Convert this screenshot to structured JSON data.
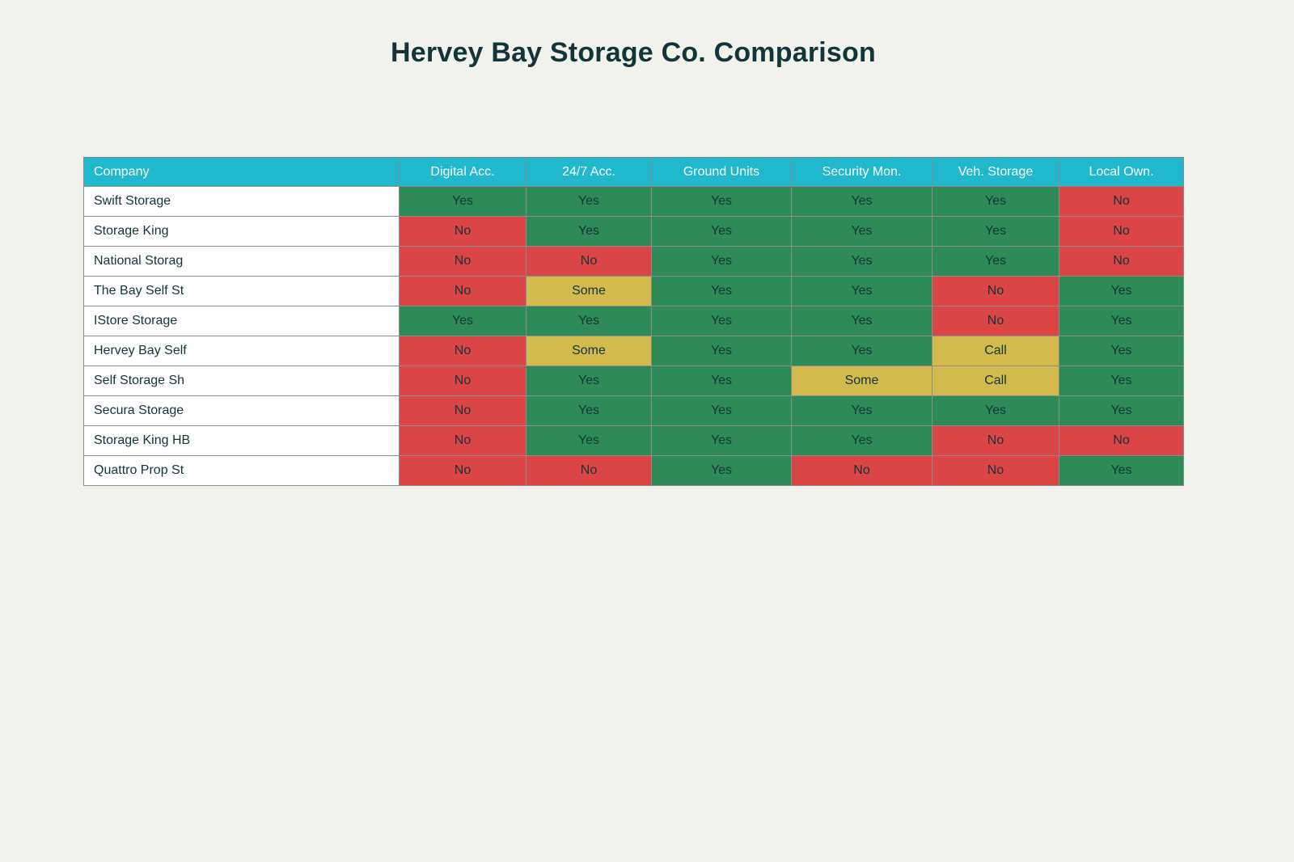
{
  "title": "Hervey Bay Storage Co. Comparison",
  "chart_data": {
    "type": "table",
    "title": "Hervey Bay Storage Co. Comparison",
    "columns": [
      "Company",
      "Digital Acc.",
      "24/7 Acc.",
      "Ground Units",
      "Security Mon.",
      "Veh. Storage",
      "Local Own."
    ],
    "rows": [
      {
        "company": "Swift Storage",
        "values": [
          "Yes",
          "Yes",
          "Yes",
          "Yes",
          "Yes",
          "No"
        ]
      },
      {
        "company": "Storage King",
        "values": [
          "No",
          "Yes",
          "Yes",
          "Yes",
          "Yes",
          "No"
        ]
      },
      {
        "company": "National Storag",
        "values": [
          "No",
          "No",
          "Yes",
          "Yes",
          "Yes",
          "No"
        ]
      },
      {
        "company": "The Bay Self St",
        "values": [
          "No",
          "Some",
          "Yes",
          "Yes",
          "No",
          "Yes"
        ]
      },
      {
        "company": "IStore Storage",
        "values": [
          "Yes",
          "Yes",
          "Yes",
          "Yes",
          "No",
          "Yes"
        ]
      },
      {
        "company": "Hervey Bay Self",
        "values": [
          "No",
          "Some",
          "Yes",
          "Yes",
          "Call",
          "Yes"
        ]
      },
      {
        "company": "Self Storage Sh",
        "values": [
          "No",
          "Yes",
          "Yes",
          "Some",
          "Call",
          "Yes"
        ]
      },
      {
        "company": "Secura Storage",
        "values": [
          "No",
          "Yes",
          "Yes",
          "Yes",
          "Yes",
          "Yes"
        ]
      },
      {
        "company": "Storage King HB",
        "values": [
          "No",
          "Yes",
          "Yes",
          "Yes",
          "No",
          "No"
        ]
      },
      {
        "company": "Quattro Prop St",
        "values": [
          "No",
          "No",
          "Yes",
          "No",
          "No",
          "Yes"
        ]
      }
    ],
    "status_colors": {
      "Yes": "#2E8B57",
      "No": "#DB4545",
      "Some": "#D2BA4C",
      "Call": "#D2BA4C"
    },
    "legend_position": "none",
    "grid": true
  },
  "colors": {
    "page_background": "#F1F2EB",
    "header_background": "#1FB8CD",
    "header_text": "#FFFFFF",
    "cell_text": "#13343B",
    "company_cell_background": "#FFFFFF",
    "grid_border": "#8C8C8C",
    "title_text": "#13343B"
  }
}
